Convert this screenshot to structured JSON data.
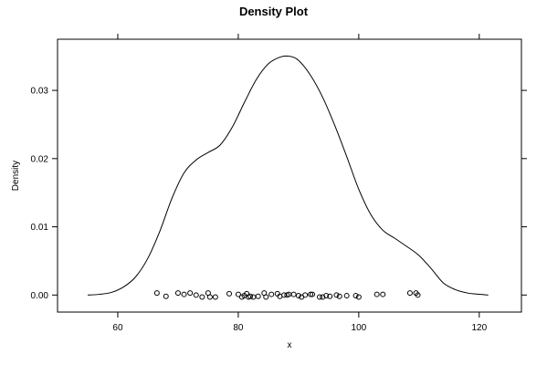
{
  "chart_data": {
    "type": "line",
    "title": "Density Plot",
    "xlabel": "x",
    "ylabel": "Density",
    "xlim": [
      50,
      127
    ],
    "ylim": [
      -0.0025,
      0.0375
    ],
    "x_ticks": [
      60,
      80,
      100,
      120
    ],
    "y_ticks": [
      0.0,
      0.01,
      0.02,
      0.03
    ],
    "y_tick_labels": [
      "0.00",
      "0.01",
      "0.02",
      "0.03"
    ],
    "grid": false,
    "series": [
      {
        "kind": "density-curve",
        "x": [
          55,
          57,
          59,
          61,
          63,
          65,
          67,
          69,
          71,
          73,
          75,
          77,
          79,
          81,
          83,
          85,
          87,
          88.5,
          90,
          92,
          94,
          96,
          98,
          100,
          102,
          104,
          106,
          108,
          110,
          112,
          114,
          116,
          118,
          120,
          121.5
        ],
        "y": [
          0.0,
          0.0001,
          0.0004,
          0.0012,
          0.0027,
          0.0054,
          0.0094,
          0.0142,
          0.0179,
          0.0198,
          0.0209,
          0.022,
          0.0246,
          0.0282,
          0.0316,
          0.0339,
          0.0349,
          0.035,
          0.0344,
          0.0322,
          0.029,
          0.0249,
          0.0203,
          0.0155,
          0.0118,
          0.0095,
          0.0083,
          0.0071,
          0.0058,
          0.0039,
          0.0018,
          0.0008,
          0.0003,
          0.0001,
          0.0
        ]
      },
      {
        "kind": "rug-points",
        "x": [
          66.5,
          68,
          70,
          71,
          72,
          73,
          74,
          75,
          75.3,
          76.2,
          78.5,
          80,
          80.6,
          81,
          81.4,
          81.7,
          82,
          82.5,
          83.3,
          84.3,
          84.6,
          85.5,
          86.5,
          86.9,
          87.6,
          88.1,
          88.4,
          89.2,
          90,
          90.5,
          91.1,
          92,
          92.3,
          93.5,
          94,
          94.6,
          95.2,
          96.3,
          96.8,
          98,
          99.5,
          100,
          103,
          104,
          108.5,
          109.5,
          109.8
        ],
        "y": [
          0.0003,
          -0.0002,
          0.0003,
          0.0001,
          0.0003,
          0.0,
          -0.0003,
          0.0003,
          -0.0003,
          -0.0003,
          0.0002,
          0.0001,
          -0.0003,
          -0.0001,
          0.0002,
          -0.0003,
          -0.0002,
          -0.0003,
          -0.0002,
          0.0003,
          -0.0003,
          0.0001,
          0.0002,
          -0.0002,
          0.0,
          0.0,
          0.0001,
          0.0001,
          -0.0001,
          -0.0003,
          0.0,
          0.0001,
          0.0001,
          -0.0003,
          -0.0003,
          -0.0001,
          -0.0002,
          0.0,
          -0.0002,
          -0.0001,
          -0.0001,
          -0.0003,
          0.0001,
          0.0001,
          0.0003,
          0.0003,
          0.0
        ]
      }
    ]
  }
}
